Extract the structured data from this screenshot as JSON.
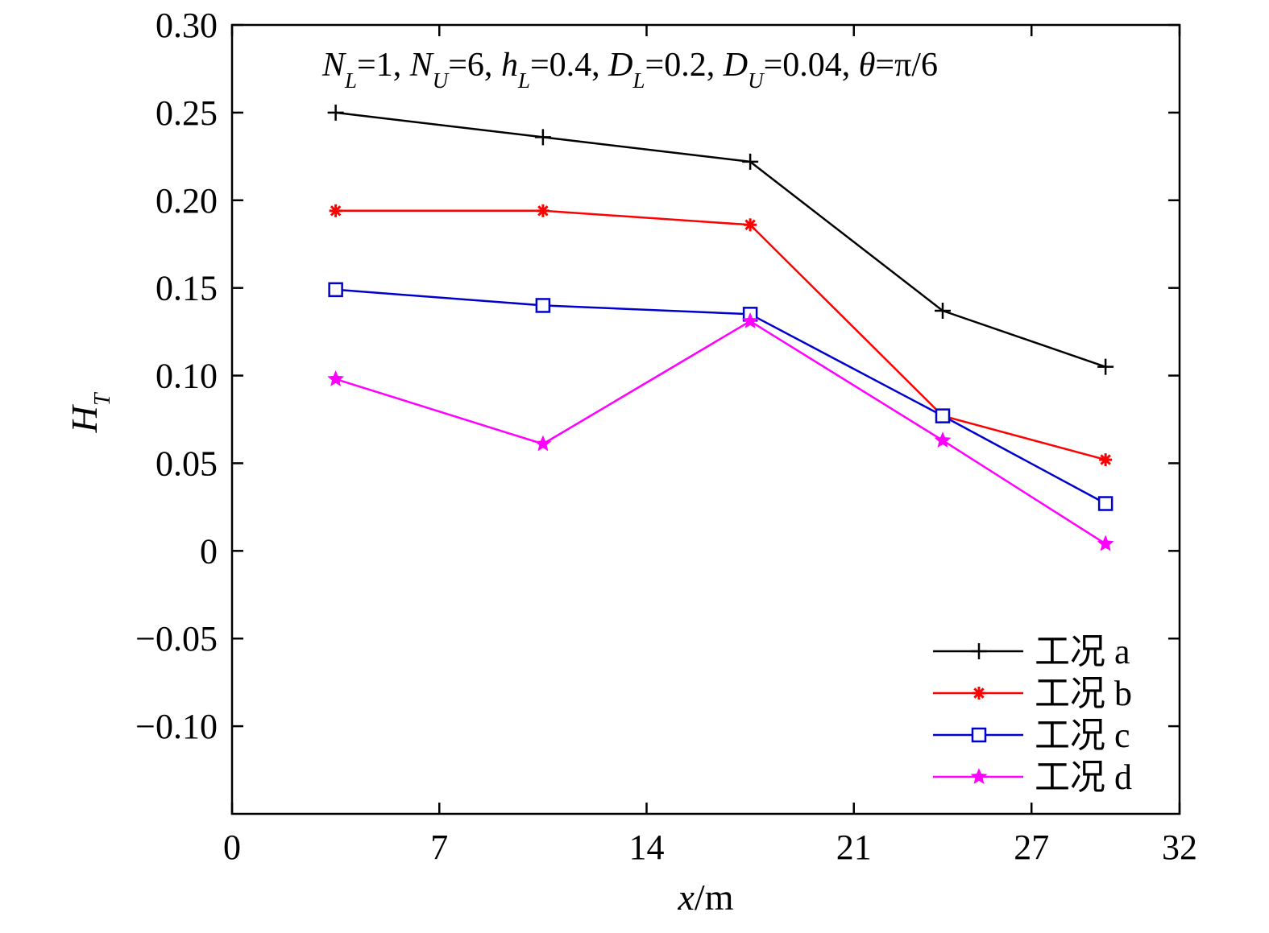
{
  "chart_data": {
    "type": "line",
    "annotation": {
      "parts": [
        {
          "text": "N",
          "italic": true
        },
        {
          "text": "L",
          "italic": true,
          "sub": true
        },
        {
          "text": "=1, "
        },
        {
          "text": "N",
          "italic": true
        },
        {
          "text": "U",
          "italic": true,
          "sub": true
        },
        {
          "text": "=6, "
        },
        {
          "text": "h",
          "italic": true
        },
        {
          "text": "L",
          "italic": true,
          "sub": true
        },
        {
          "text": "=0.4, "
        },
        {
          "text": "D",
          "italic": true
        },
        {
          "text": "L",
          "italic": true,
          "sub": true
        },
        {
          "text": "=0.2, "
        },
        {
          "text": "D",
          "italic": true
        },
        {
          "text": "U",
          "italic": true,
          "sub": true
        },
        {
          "text": "=0.04, "
        },
        {
          "text": "θ",
          "italic": true
        },
        {
          "text": "=π/6"
        }
      ]
    },
    "xlabel": {
      "var": "x",
      "unit": "/m"
    },
    "ylabel": {
      "var": "H",
      "sub": "T"
    },
    "xlim": [
      0,
      32
    ],
    "ylim": [
      -0.15,
      0.3
    ],
    "x_ticks": [
      0,
      7,
      14,
      21,
      27,
      32
    ],
    "x_tick_labels": [
      "0",
      "7",
      "14",
      "21",
      "27",
      "32"
    ],
    "y_ticks": [
      -0.1,
      -0.05,
      0,
      0.05,
      0.1,
      0.15,
      0.2,
      0.25,
      0.3
    ],
    "y_tick_labels": [
      "−0.10",
      "−0.05",
      "0",
      "0.05",
      "0.10",
      "0.15",
      "0.20",
      "0.25",
      "0.30"
    ],
    "grid": false,
    "legend_position": "bottom-right",
    "series": [
      {
        "name": "工况 a",
        "color": "#000000",
        "marker": "plus",
        "x": [
          3.5,
          10.5,
          17.5,
          24.0,
          29.5
        ],
        "y": [
          0.25,
          0.236,
          0.222,
          0.137,
          0.105
        ]
      },
      {
        "name": "工况 b",
        "color": "#ff0000",
        "marker": "asterisk",
        "x": [
          3.5,
          10.5,
          17.5,
          24.0,
          29.5
        ],
        "y": [
          0.194,
          0.194,
          0.186,
          0.077,
          0.052
        ]
      },
      {
        "name": "工况 c",
        "color": "#0000cc",
        "marker": "square",
        "x": [
          3.5,
          10.5,
          17.5,
          24.0,
          29.5
        ],
        "y": [
          0.149,
          0.14,
          0.135,
          0.077,
          0.027
        ]
      },
      {
        "name": "工况 d",
        "color": "#ff00ff",
        "marker": "star",
        "x": [
          3.5,
          10.5,
          17.5,
          24.0,
          29.5
        ],
        "y": [
          0.098,
          0.061,
          0.131,
          0.063,
          0.004
        ]
      }
    ]
  }
}
